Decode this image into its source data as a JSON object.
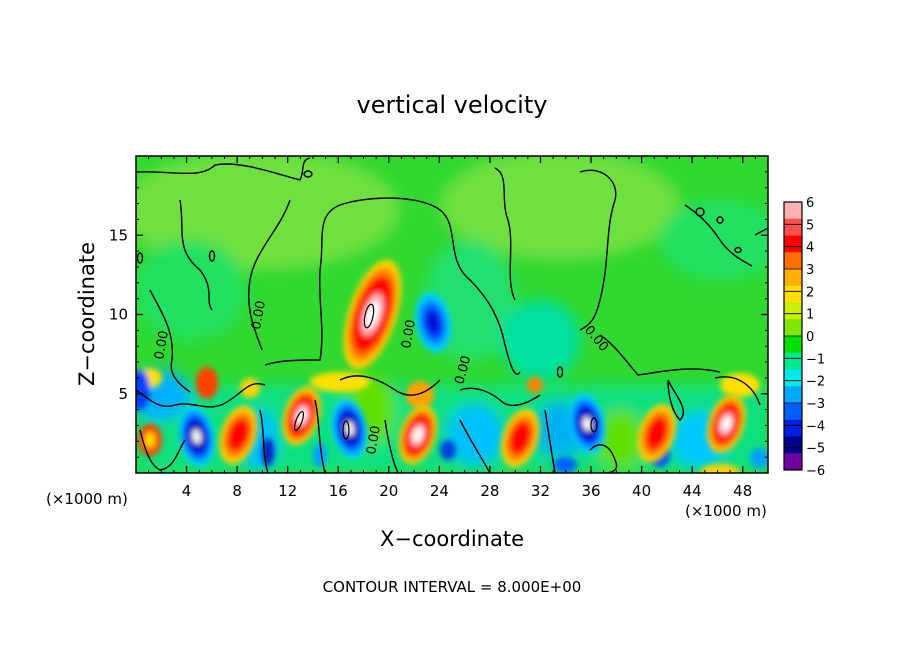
{
  "chart_data": {
    "type": "heatmap",
    "title": "vertical velocity",
    "xlabel": "X−coordinate",
    "ylabel": "Z−coordinate",
    "x_unit": "(×1000 m)",
    "y_unit": "(×1000 m)",
    "xlim": [
      0,
      50
    ],
    "ylim": [
      0,
      20
    ],
    "x_ticks": [
      4,
      8,
      12,
      16,
      20,
      24,
      28,
      32,
      36,
      40,
      44,
      48
    ],
    "x_tick_labels": [
      "4",
      "8",
      "12",
      "16",
      "20",
      "24",
      "28",
      "32",
      "36",
      "40",
      "44",
      "48"
    ],
    "y_ticks": [
      5,
      10,
      15
    ],
    "y_tick_labels": [
      "5",
      "10",
      "15"
    ],
    "contour_label": "0.00",
    "contour_interval_text": "CONTOUR INTERVAL =  8.000E+00",
    "colorbar": {
      "min": -6,
      "max": 6,
      "tick_labels": [
        "6",
        "5",
        "4",
        "3",
        "2",
        "1",
        "0",
        "−1",
        "−2",
        "−3",
        "−4",
        "−5",
        "−6"
      ],
      "colors": [
        "#ffb0b0",
        "#ff5050",
        "#ff0000",
        "#ff7000",
        "#ffb000",
        "#ffe000",
        "#c8f000",
        "#80e800",
        "#00e000",
        "#00e890",
        "#00e8e8",
        "#00a8ff",
        "#0060ff",
        "#0020e0",
        "#000090",
        "#7000a0"
      ]
    },
    "features": [
      {
        "x": 18.7,
        "z": 10,
        "w": 8
      },
      {
        "x": 23.5,
        "z": 9.5,
        "w": -4
      },
      {
        "x": 4.8,
        "z": 2.3,
        "w": -5.5
      },
      {
        "x": 8.1,
        "z": 2.4,
        "w": 4
      },
      {
        "x": 13.1,
        "z": 3.6,
        "w": 6
      },
      {
        "x": 16.9,
        "z": 2.8,
        "w": -6
      },
      {
        "x": 22.3,
        "z": 2.4,
        "w": 6
      },
      {
        "x": 30.4,
        "z": 2.2,
        "w": 4
      },
      {
        "x": 35.7,
        "z": 3.1,
        "w": -6
      },
      {
        "x": 41.2,
        "z": 2.5,
        "w": 4
      },
      {
        "x": 46.7,
        "z": 3.1,
        "w": 6
      }
    ]
  }
}
